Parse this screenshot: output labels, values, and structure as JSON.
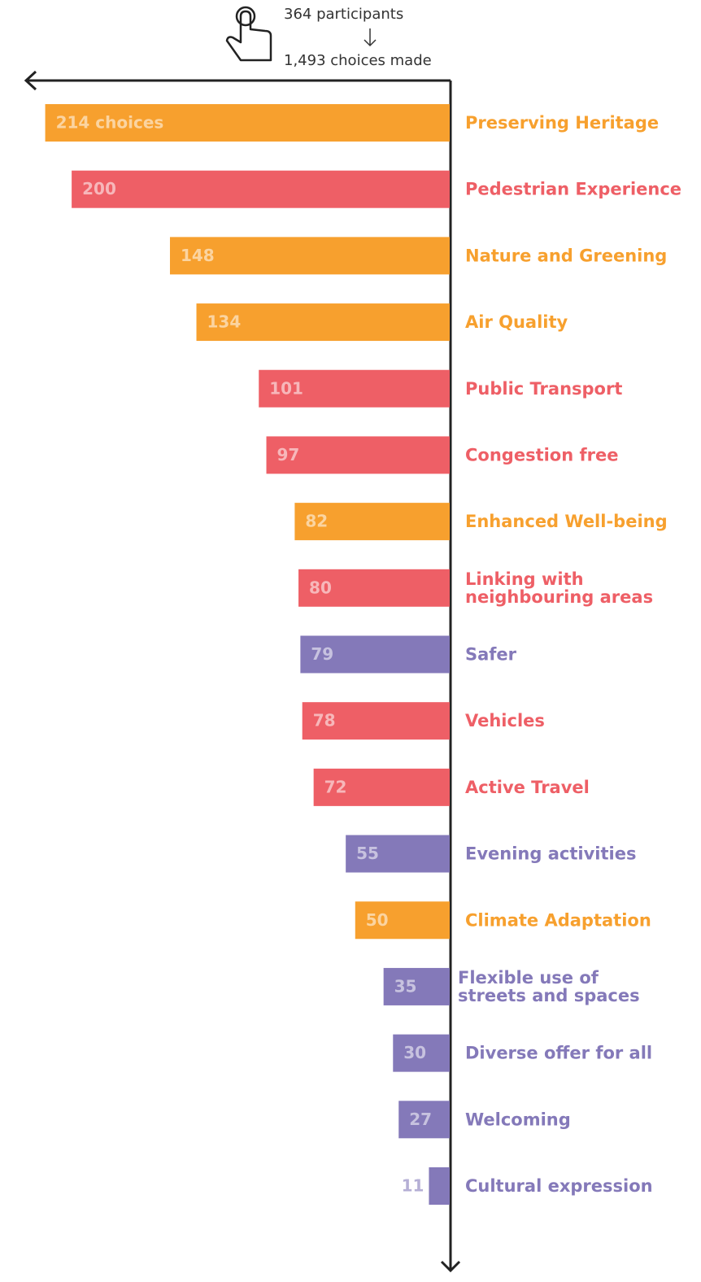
{
  "chart_data": {
    "type": "hbar-left",
    "subtitle": "364 participants",
    "title": "1,493 choices made",
    "categories": [
      "Preserving Heritage",
      "Pedestrian Experience",
      "Nature and Greening",
      "Air Quality",
      "Public Transport",
      "Congestion free",
      "Enhanced Well-being",
      "Linking with\nneighbouring areas",
      "Safer",
      "Vehicles",
      "Active Travel",
      "Evening activities",
      "Climate Adaptation",
      "Flexible use of\nstreets and spaces",
      "Diverse offer for all",
      "Welcoming",
      "Cultural expression"
    ],
    "values": [
      214,
      200,
      148,
      134,
      101,
      97,
      82,
      80,
      79,
      78,
      72,
      55,
      50,
      35,
      30,
      27,
      11
    ],
    "value_labels": [
      "214 choices",
      "200",
      "148",
      "134",
      "101",
      "97",
      "82",
      "80",
      "79",
      "78",
      "72",
      "55",
      "50",
      "35",
      "30",
      "27",
      "11"
    ],
    "colors": [
      "#f7a02e",
      "#ee5f66",
      "#f7a02e",
      "#f7a02e",
      "#ee5f66",
      "#ee5f66",
      "#f7a02e",
      "#ee5f66",
      "#8479b9",
      "#ee5f66",
      "#ee5f66",
      "#8479b9",
      "#f7a02e",
      "#8479b9",
      "#8479b9",
      "#8479b9",
      "#8479b9"
    ],
    "xlim": [
      0,
      225
    ]
  }
}
